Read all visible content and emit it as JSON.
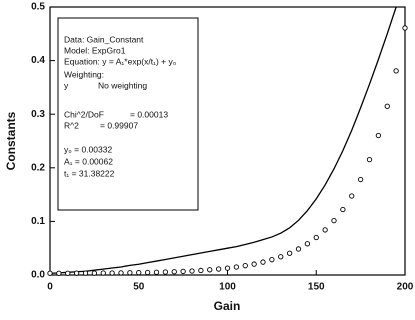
{
  "chart_data": {
    "type": "scatter",
    "xlabel": "Gain",
    "ylabel": "Constants",
    "xlim": [
      0,
      200
    ],
    "xticks": [
      0,
      50,
      100,
      150,
      200
    ],
    "ylim": [
      0,
      0.5
    ],
    "yticks": [
      {
        "value": 0,
        "label": "0.0"
      },
      0.1,
      0.2,
      0.3,
      0.4,
      0.5
    ],
    "annotations": [
      "Data: Gain_Constant",
      "Model: ExpGro1",
      "Equation: y = A₁*exp(x/t₁) + y₀",
      "Weighting:",
      "y",
      "No weighting",
      "Chi^2/DoF",
      "= 0.00013",
      "R^2",
      "= 0.99907",
      "y₀ = 0.00332",
      "A₁ = 0.00062",
      "t₁ = 31.38222"
    ],
    "series": [
      {
        "style": "line",
        "color": "#000000",
        "x": [
          0,
          5,
          10,
          15,
          20,
          25,
          30,
          35,
          40,
          45,
          50,
          55,
          60,
          65,
          70,
          75,
          80,
          85,
          90,
          95,
          100,
          105,
          110,
          115,
          120,
          125,
          130,
          135,
          140,
          145,
          150,
          155,
          160,
          165,
          170,
          175,
          180,
          185,
          190,
          195
        ],
        "values": [
          0.003,
          0.004,
          0.005,
          0.006,
          0.007,
          0.009,
          0.011,
          0.013,
          0.015,
          0.018,
          0.02,
          0.023,
          0.026,
          0.029,
          0.032,
          0.035,
          0.038,
          0.041,
          0.044,
          0.047,
          0.05,
          0.053,
          0.057,
          0.061,
          0.066,
          0.071,
          0.078,
          0.088,
          0.102,
          0.12,
          0.142,
          0.168,
          0.198,
          0.232,
          0.27,
          0.312,
          0.356,
          0.402,
          0.45,
          0.5
        ]
      },
      {
        "style": "markers",
        "color": "#000000",
        "x": [
          0,
          5,
          10,
          15,
          20,
          25,
          30,
          35,
          40,
          45,
          50,
          55,
          60,
          65,
          70,
          75,
          80,
          85,
          90,
          95,
          100,
          105,
          110,
          115,
          120,
          125,
          130,
          135,
          140,
          145,
          150,
          155,
          160,
          165,
          170,
          175,
          180,
          185,
          190,
          195,
          200
        ],
        "values": [
          0.0032,
          0.0033,
          0.0033,
          0.0034,
          0.0035,
          0.0035,
          0.0037,
          0.0038,
          0.004,
          0.0042,
          0.0044,
          0.0047,
          0.0051,
          0.0055,
          0.0061,
          0.0067,
          0.0075,
          0.0085,
          0.0097,
          0.0111,
          0.0128,
          0.0149,
          0.0174,
          0.0204,
          0.0241,
          0.0286,
          0.034,
          0.0406,
          0.0486,
          0.0582,
          0.0699,
          0.0841,
          0.1014,
          0.1222,
          0.1474,
          0.1781,
          0.2152,
          0.2603,
          0.3148,
          0.3809,
          0.4609
        ]
      }
    ]
  }
}
